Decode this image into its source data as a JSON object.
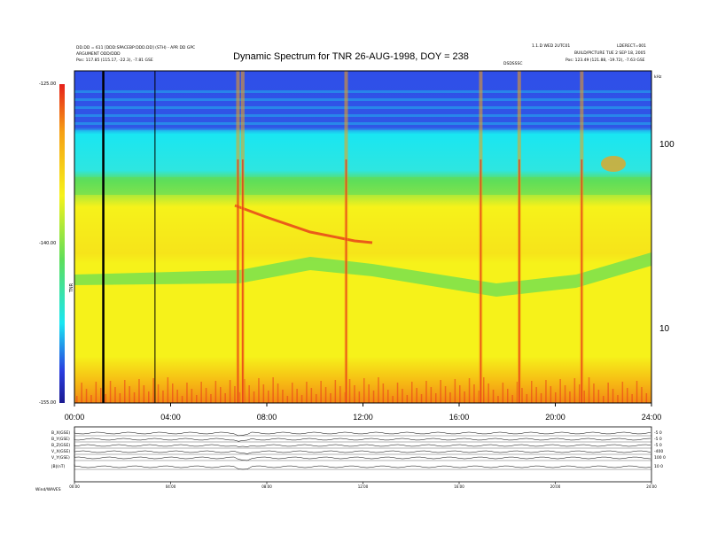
{
  "header": {
    "left_line1": "DD.DD = 611 [DDD:SPACEBP:DDD.DD] (STH) - APR DD GPC",
    "left_line2": "ARGUMENT ODD/DDD",
    "left_line3": "Pos: 117.85 (115.17, -22.3), -7.81 GSE",
    "right_line1": "1.1.D WED 2UTC01",
    "right_line2": "LDERECT=001",
    "right_line3": "BUILD/PICTURE TUE 2 SEP 18, 2005",
    "right_line4": "Pos: 123.49 (121.88, -19.72), -7.63 GSE",
    "right_small": "DSDSSSC",
    "khz": "kHz"
  },
  "title": "Dynamic Spectrum for TNR 26-AUG-1998, DOY = 238",
  "colorbar": {
    "labels": [
      "-125.00",
      "-140.00",
      "-155.00"
    ],
    "unit": "TNR"
  },
  "chart_data": {
    "type": "heatmap",
    "title": "Dynamic Spectrum for TNR 26-AUG-1998, DOY = 238",
    "x_ticks": [
      "00:00",
      "04:00",
      "08:00",
      "12:00",
      "16:00",
      "20:00",
      "24:00"
    ],
    "x_range_hours": [
      0,
      24
    ],
    "y_ticks": [
      "100",
      "10"
    ],
    "y_scale": "log",
    "y_range": [
      4,
      150
    ],
    "colorbar_range": [
      -155,
      -125
    ],
    "colors": {
      "top": "#2a3de0",
      "band_cyan": "#19e6f2",
      "green": "#5ede5a",
      "yellow": "#f6f21a",
      "orange": "#f6a014",
      "red": "#e6201a"
    },
    "black_markers_hours": [
      1.2,
      3.35
    ],
    "bursts_hours": [
      6.8,
      7.0,
      11.3,
      16.9,
      18.5,
      21.1
    ],
    "stack_panels": [
      {
        "label": "B_X(GSE)",
        "right": "-5  0"
      },
      {
        "label": "B_Y(GSE)",
        "right": "-5  0"
      },
      {
        "label": "B_Z(GSE)",
        "right": "-5  0"
      },
      {
        "label": "V_X(GSE)",
        "right": "-400"
      },
      {
        "label": "V_Y(GSE)",
        "right": "100  0"
      },
      {
        "label": "|B|(nT)",
        "right": "10  0"
      }
    ],
    "stack_x_ticks": [
      "00:00",
      "04:00",
      "08:00",
      "12:00",
      "16:00",
      "20:00",
      "24:00"
    ]
  },
  "footer": "Wind/WAVES"
}
